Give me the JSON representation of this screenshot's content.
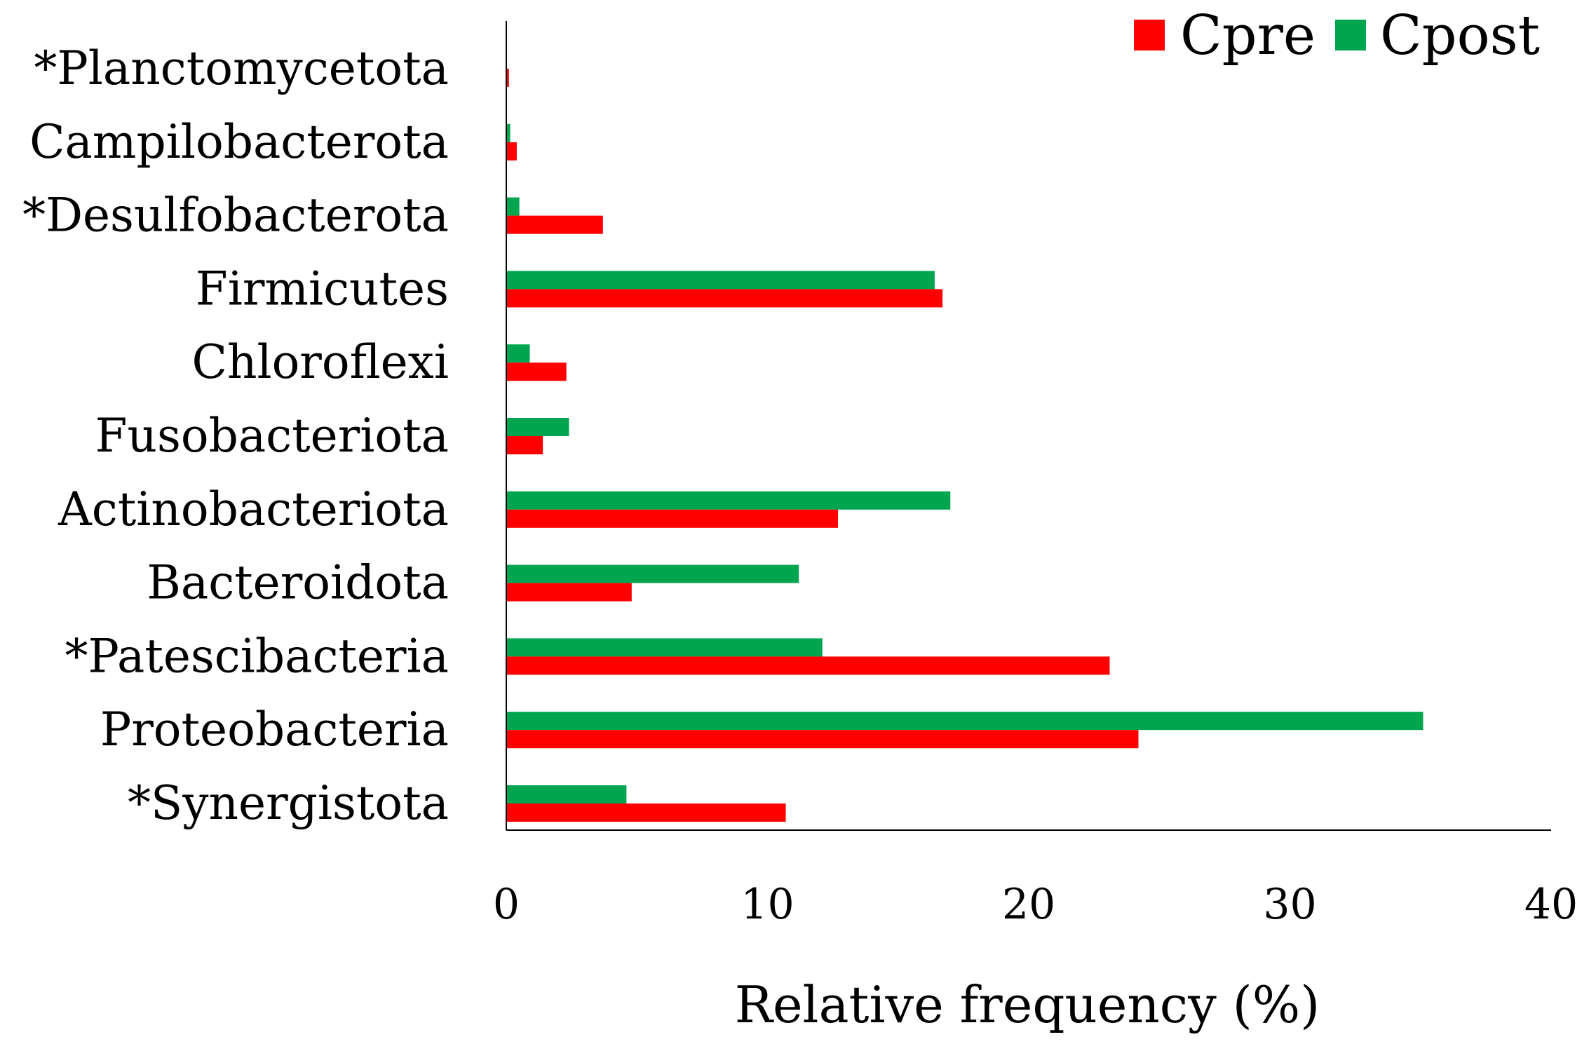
{
  "chart_data": {
    "type": "bar",
    "orientation": "horizontal",
    "title": "",
    "xlabel": "Relative frequency (%)",
    "ylabel": "",
    "xlim": [
      0,
      40
    ],
    "x_ticks": [
      "0",
      "10",
      "20",
      "30",
      "40"
    ],
    "categories": [
      "*Planctomycetota",
      "Campilobacterota",
      "*Desulfobacterota",
      "Firmicutes",
      "Chloroflexi",
      "Fusobacteriota",
      "Actinobacteriota",
      "Bacteroidota",
      "*Patescibacteria",
      "Proteobacteria",
      "*Synergistota"
    ],
    "series": [
      {
        "name": "Cpre",
        "color": "#ff0000",
        "values": [
          0.1,
          0.4,
          3.7,
          16.7,
          2.3,
          1.4,
          12.7,
          4.8,
          23.1,
          24.2,
          10.7
        ]
      },
      {
        "name": "Cpost",
        "color": "#00a550",
        "values": [
          0.0,
          0.15,
          0.5,
          16.4,
          0.9,
          2.4,
          17.0,
          11.2,
          12.1,
          35.1,
          4.6
        ]
      }
    ],
    "legend": {
      "position": "top-right",
      "order": [
        "Cpre",
        "Cpost"
      ]
    },
    "grid": false
  }
}
